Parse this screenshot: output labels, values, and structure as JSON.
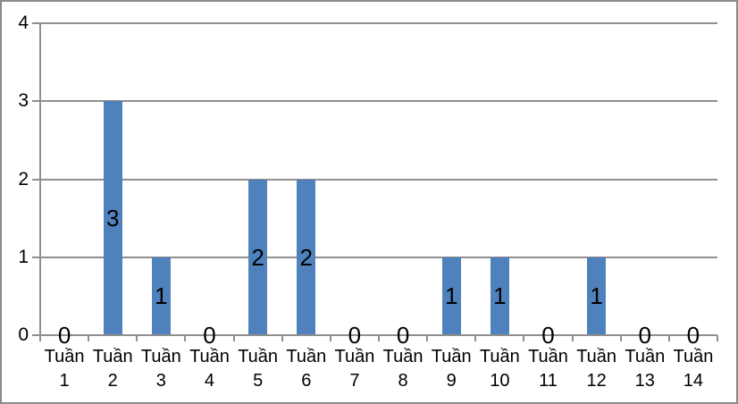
{
  "chart_data": {
    "type": "bar",
    "categories": [
      "Tuần 1",
      "Tuần 2",
      "Tuần 3",
      "Tuần 4",
      "Tuần 5",
      "Tuần 6",
      "Tuần 7",
      "Tuần 8",
      "Tuần 9",
      "Tuần 10",
      "Tuần 11",
      "Tuần 12",
      "Tuần 13",
      "Tuần 14"
    ],
    "values": [
      0,
      3,
      1,
      0,
      2,
      2,
      0,
      0,
      1,
      1,
      0,
      1,
      0,
      0
    ],
    "title": "",
    "xlabel": "",
    "ylabel": "",
    "ylim": [
      0,
      4
    ],
    "yticks": [
      0,
      1,
      2,
      3,
      4
    ],
    "grid": true,
    "legend": "none",
    "data_labels": "center"
  },
  "colors": {
    "bar": "#4F81BD",
    "gridline": "#8f8f8f",
    "axis": "#8f8f8f",
    "tick": "#8f8f8f",
    "frame_border": "#8a8a8a",
    "text": "#000000",
    "background": "#ffffff"
  }
}
